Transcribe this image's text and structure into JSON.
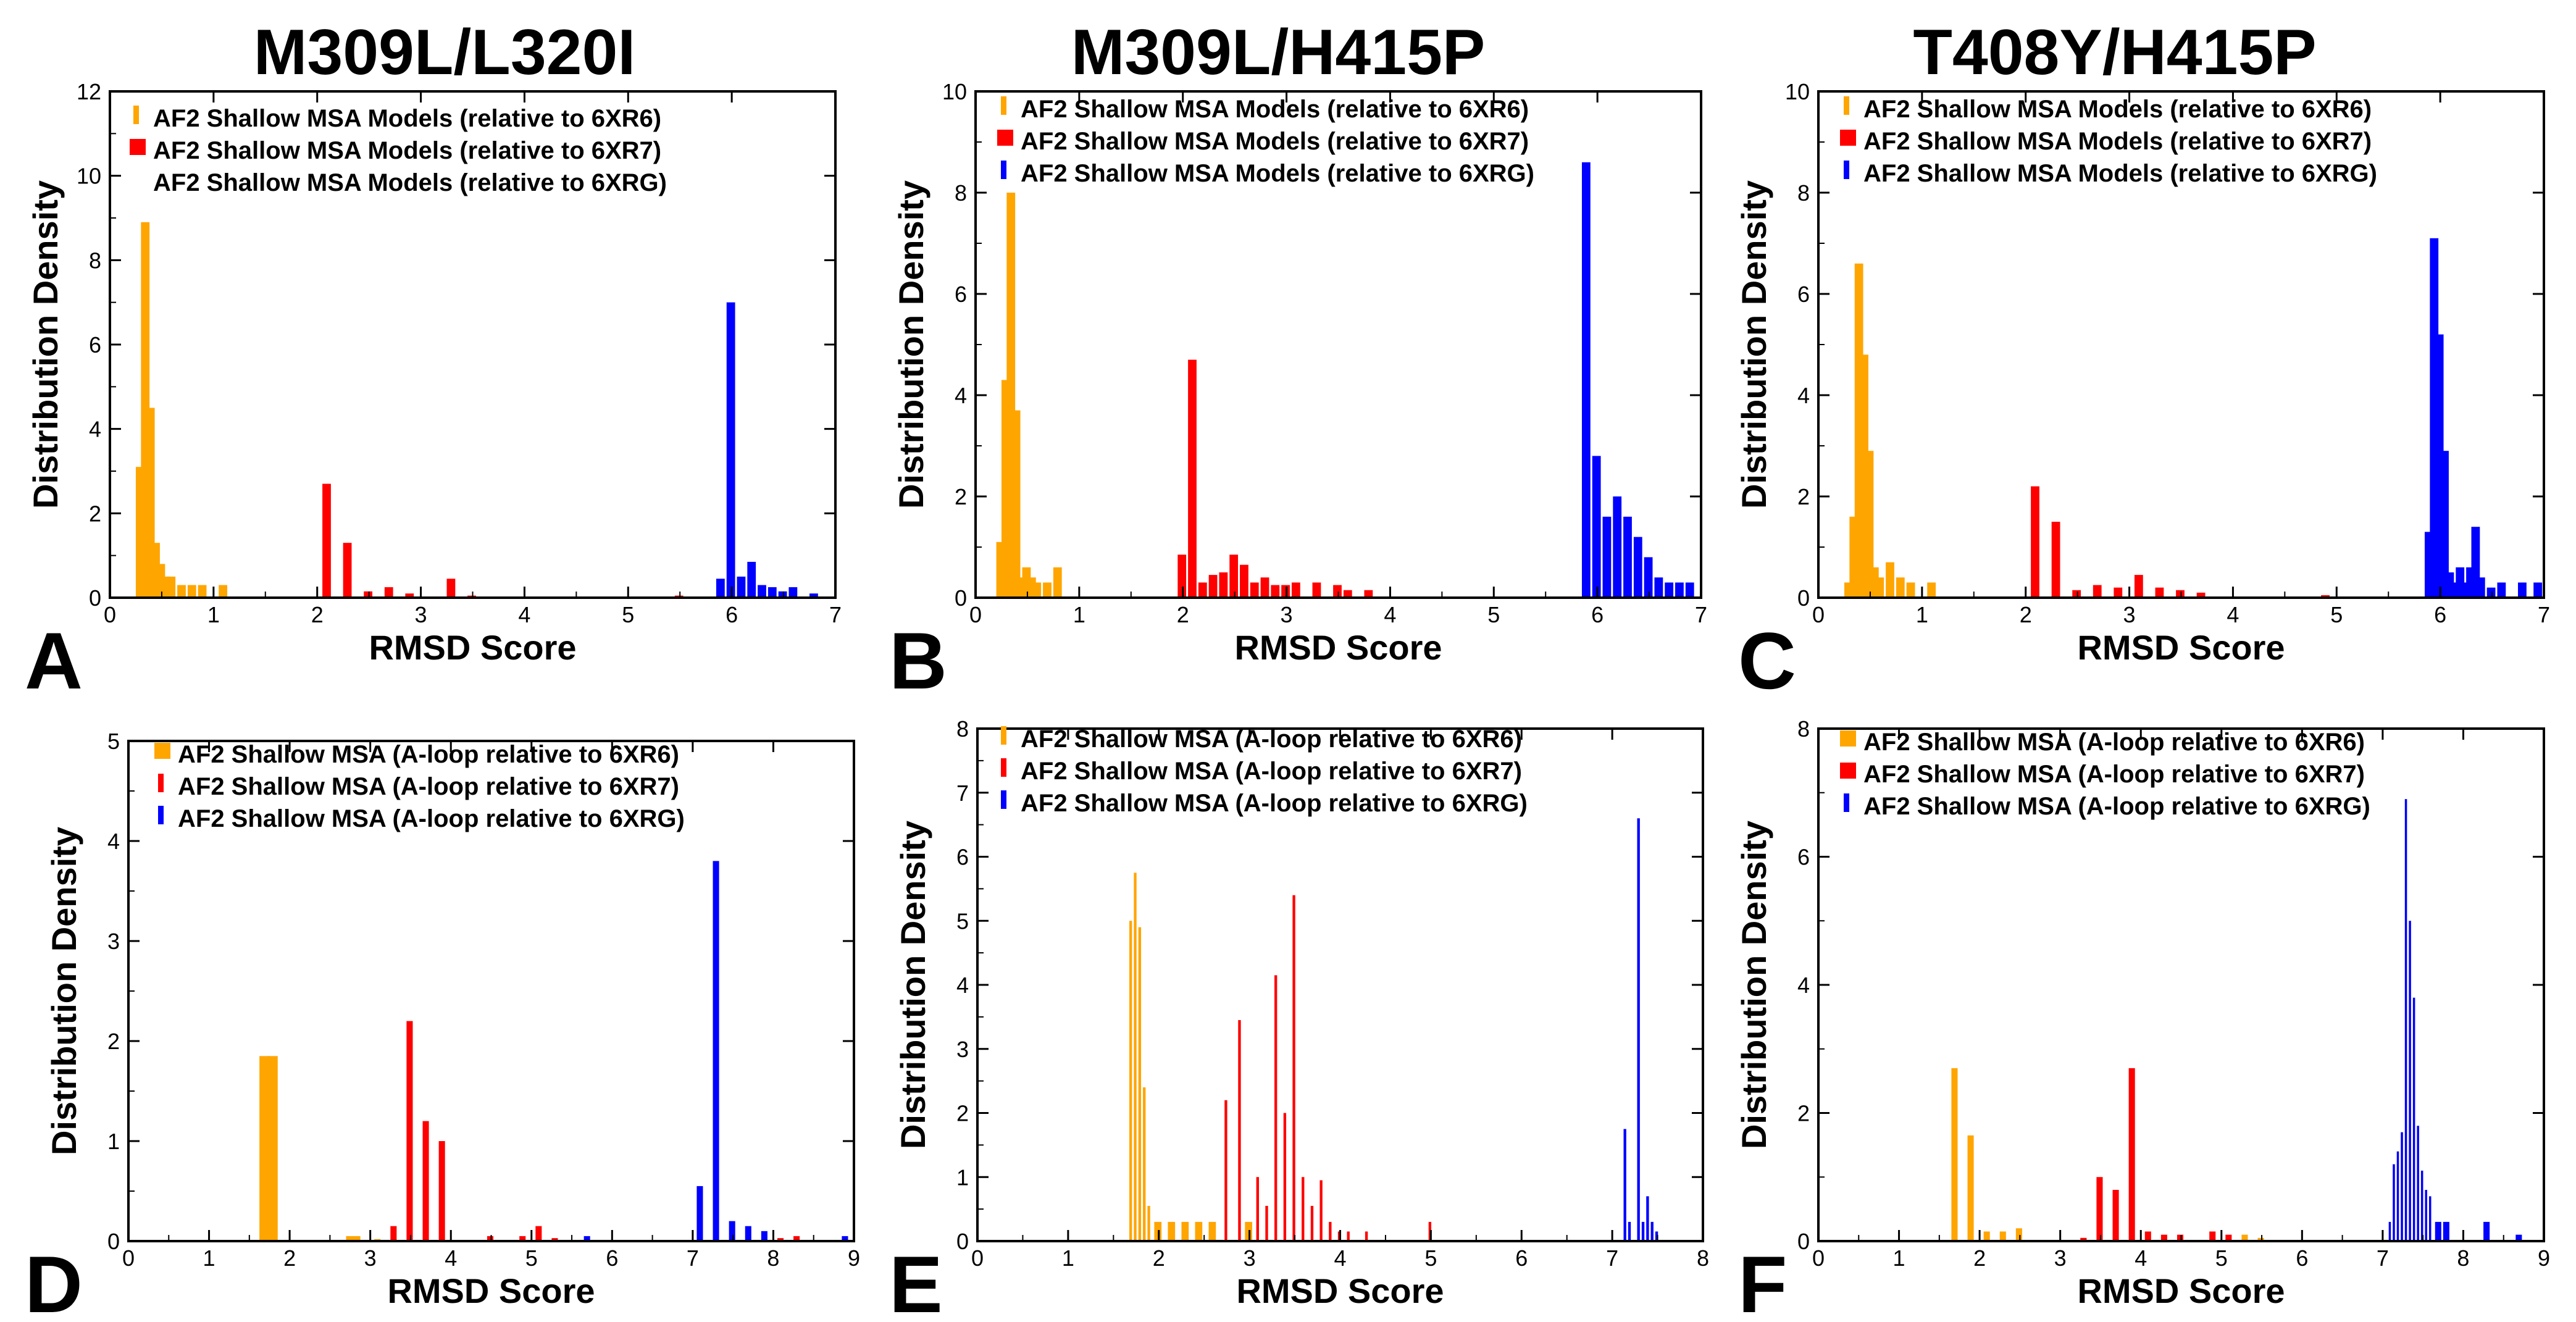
{
  "colors": {
    "orange": "#FFA500",
    "red": "#FF0000",
    "blue": "#0000FF"
  },
  "chart_data": [
    {
      "type": "bar",
      "panel_letter": "A",
      "title": "M309L/L320I",
      "xlabel": "RMSD Score",
      "ylabel": "Distribution Density",
      "xlim": [
        0,
        7
      ],
      "ylim": [
        0,
        12
      ],
      "xticks": [
        "0",
        "1",
        "2",
        "3",
        "4",
        "5",
        "6",
        "7"
      ],
      "yticks": [
        "0",
        "2",
        "4",
        "6",
        "8",
        "10",
        "12"
      ],
      "bin_width": 0.1,
      "legend_location": "top-left",
      "series": [
        {
          "name": "AF2 Shallow MSA Models (relative to 6XR6)",
          "color": "orange",
          "legend_swatch": "thin",
          "x": [
            0.3,
            0.35,
            0.4,
            0.45,
            0.5,
            0.55,
            0.6,
            0.7,
            0.8,
            0.9,
            1.1
          ],
          "y": [
            3.1,
            8.9,
            4.5,
            1.3,
            0.8,
            0.5,
            0.5,
            0.3,
            0.3,
            0.3,
            0.3
          ]
        },
        {
          "name": "AF2 Shallow MSA Models (relative to 6XR7)",
          "color": "red",
          "legend_swatch": "wide",
          "x": [
            2.1,
            2.3,
            2.5,
            2.7,
            2.9,
            3.3,
            3.5,
            5.5
          ],
          "y": [
            2.7,
            1.3,
            0.15,
            0.25,
            0.1,
            0.45,
            0.05,
            0.05
          ]
        },
        {
          "name": "AF2 Shallow MSA Models (relative to 6XRG)",
          "color": "blue",
          "legend_swatch": "none",
          "x": [
            5.9,
            6.0,
            6.1,
            6.2,
            6.3,
            6.4,
            6.5,
            6.6,
            6.8
          ],
          "y": [
            0.45,
            7.0,
            0.5,
            0.85,
            0.3,
            0.25,
            0.15,
            0.25,
            0.1
          ]
        }
      ]
    },
    {
      "type": "bar",
      "panel_letter": "B",
      "title": "M309L/H415P",
      "xlabel": "RMSD Score",
      "ylabel": "Distribution Density",
      "xlim": [
        0,
        7
      ],
      "ylim": [
        0,
        10
      ],
      "xticks": [
        "0",
        "1",
        "2",
        "3",
        "4",
        "5",
        "6",
        "7"
      ],
      "yticks": [
        "0",
        "2",
        "4",
        "6",
        "8",
        "10"
      ],
      "bin_width": 0.1,
      "legend_location": "top-left",
      "series": [
        {
          "name": "AF2 Shallow MSA Models (relative to 6XR6)",
          "color": "orange",
          "legend_swatch": "thin",
          "x": [
            0.25,
            0.3,
            0.35,
            0.4,
            0.45,
            0.5,
            0.55,
            0.6,
            0.7,
            0.8
          ],
          "y": [
            1.1,
            4.3,
            8.0,
            3.7,
            0.4,
            0.6,
            0.4,
            0.3,
            0.3,
            0.6
          ]
        },
        {
          "name": "AF2 Shallow MSA Models (relative to 6XR7)",
          "color": "red",
          "legend_swatch": "wide",
          "x": [
            2.0,
            2.1,
            2.2,
            2.3,
            2.4,
            2.5,
            2.6,
            2.7,
            2.8,
            2.9,
            3.0,
            3.1,
            3.3,
            3.5,
            3.6,
            3.8
          ],
          "y": [
            0.85,
            4.7,
            0.3,
            0.45,
            0.5,
            0.85,
            0.65,
            0.3,
            0.4,
            0.25,
            0.25,
            0.3,
            0.3,
            0.25,
            0.15,
            0.15
          ]
        },
        {
          "name": "AF2 Shallow MSA Models (relative to 6XRG)",
          "color": "blue",
          "legend_swatch": "thin",
          "x": [
            5.9,
            6.0,
            6.1,
            6.2,
            6.3,
            6.4,
            6.5,
            6.6,
            6.7,
            6.8,
            6.9
          ],
          "y": [
            8.6,
            2.8,
            1.6,
            2.0,
            1.6,
            1.2,
            0.8,
            0.4,
            0.3,
            0.3,
            0.3
          ]
        }
      ]
    },
    {
      "type": "bar",
      "panel_letter": "C",
      "title": "T408Y/H415P",
      "xlabel": "RMSD Score",
      "ylabel": "Distribution Density",
      "xlim": [
        0,
        7
      ],
      "ylim": [
        0,
        10
      ],
      "xticks": [
        "0",
        "1",
        "2",
        "3",
        "4",
        "5",
        "6",
        "7"
      ],
      "yticks": [
        "0",
        "2",
        "4",
        "6",
        "8",
        "10"
      ],
      "bin_width": 0.1,
      "legend_location": "top-left",
      "series": [
        {
          "name": "AF2 Shallow MSA Models (relative to 6XR6)",
          "color": "orange",
          "legend_swatch": "thin",
          "x": [
            0.3,
            0.35,
            0.4,
            0.45,
            0.5,
            0.55,
            0.6,
            0.7,
            0.8,
            0.9,
            1.1
          ],
          "y": [
            0.3,
            1.6,
            6.6,
            4.8,
            2.9,
            0.6,
            0.4,
            0.7,
            0.4,
            0.3,
            0.3
          ]
        },
        {
          "name": "AF2 Shallow MSA Models (relative to 6XR7)",
          "color": "red",
          "legend_swatch": "wide",
          "x": [
            2.1,
            2.3,
            2.5,
            2.7,
            2.9,
            3.1,
            3.3,
            3.5,
            3.7,
            4.9
          ],
          "y": [
            2.2,
            1.5,
            0.15,
            0.25,
            0.2,
            0.45,
            0.2,
            0.15,
            0.1,
            0.05
          ]
        },
        {
          "name": "AF2 Shallow MSA Models (relative to 6XRG)",
          "color": "blue",
          "legend_swatch": "thin",
          "x": [
            5.9,
            5.95,
            6.0,
            6.05,
            6.1,
            6.15,
            6.2,
            6.25,
            6.3,
            6.35,
            6.4,
            6.5,
            6.6,
            6.8,
            6.95
          ],
          "y": [
            1.3,
            7.1,
            5.2,
            2.9,
            0.5,
            0.3,
            0.6,
            0.3,
            0.6,
            1.4,
            0.4,
            0.2,
            0.3,
            0.3,
            0.3
          ]
        }
      ]
    },
    {
      "type": "bar",
      "panel_letter": "D",
      "title": "",
      "xlabel": "RMSD Score",
      "ylabel": "Distribution Density",
      "xlim": [
        0,
        9
      ],
      "ylim": [
        0,
        5
      ],
      "xticks": [
        "0",
        "1",
        "2",
        "3",
        "4",
        "5",
        "6",
        "7",
        "8",
        "9"
      ],
      "yticks": [
        "0",
        "1",
        "2",
        "3",
        "4",
        "5"
      ],
      "bin_width": 0.1,
      "legend_location": "top-left",
      "series": [
        {
          "name": "AF2 Shallow MSA (A-loop relative to 6XR6)",
          "color": "orange",
          "legend_swatch": "wide",
          "x": [
            1.7,
            1.8,
            2.8,
            3.1
          ],
          "y": [
            1.85,
            1.85,
            0.05,
            0.02
          ],
          "widths": [
            0.15,
            0.15,
            0.2,
            0.1
          ]
        },
        {
          "name": "AF2 Shallow MSA (A-loop relative to 6XR7)",
          "color": "red",
          "legend_swatch": "thin",
          "x": [
            3.3,
            3.5,
            3.7,
            3.9,
            4.5,
            4.9,
            5.1,
            5.3,
            8.1,
            8.3
          ],
          "y": [
            0.15,
            2.2,
            1.2,
            1.0,
            0.05,
            0.05,
            0.15,
            0.03,
            0.03,
            0.05
          ]
        },
        {
          "name": "AF2 Shallow MSA (A-loop relative to 6XRG)",
          "color": "blue",
          "legend_swatch": "thin",
          "x": [
            5.7,
            7.1,
            7.3,
            7.5,
            7.7,
            7.9,
            8.9
          ],
          "y": [
            0.05,
            0.55,
            3.8,
            0.2,
            0.15,
            0.1,
            0.05
          ]
        }
      ]
    },
    {
      "type": "bar",
      "panel_letter": "E",
      "title": "",
      "xlabel": "RMSD Score",
      "ylabel": "Distribution Density",
      "xlim": [
        0,
        8
      ],
      "ylim": [
        0,
        8
      ],
      "xticks": [
        "0",
        "1",
        "2",
        "3",
        "4",
        "5",
        "6",
        "7",
        "8"
      ],
      "yticks": [
        "0",
        "1",
        "2",
        "3",
        "4",
        "5",
        "6",
        "7",
        "8"
      ],
      "bin_width": 0.05,
      "legend_location": "top-left",
      "series": [
        {
          "name": "AF2 Shallow MSA (A-loop relative to 6XR6)",
          "color": "orange",
          "legend_swatch": "thin",
          "x": [
            1.7,
            1.75,
            1.8,
            1.85,
            1.9,
            2.0,
            2.15,
            2.3,
            2.45,
            2.6,
            3.0
          ],
          "y": [
            5.0,
            5.75,
            4.9,
            2.4,
            0.55,
            0.3,
            0.3,
            0.3,
            0.3,
            0.3,
            0.3
          ],
          "widths": [
            0.05,
            0.05,
            0.05,
            0.05,
            0.05,
            0.1,
            0.1,
            0.1,
            0.1,
            0.1,
            0.1
          ]
        },
        {
          "name": "AF2 Shallow MSA (A-loop relative to 6XR7)",
          "color": "red",
          "legend_swatch": "thin",
          "x": [
            2.75,
            2.9,
            3.1,
            3.2,
            3.3,
            3.4,
            3.5,
            3.6,
            3.7,
            3.8,
            3.9,
            4.0,
            4.1,
            4.3,
            5.0
          ],
          "y": [
            2.2,
            3.45,
            1.0,
            0.55,
            4.15,
            2.0,
            5.4,
            1.0,
            0.55,
            0.95,
            0.3,
            0.15,
            0.15,
            0.15,
            0.3
          ]
        },
        {
          "name": "AF2 Shallow MSA (A-loop relative to 6XRG)",
          "color": "blue",
          "legend_swatch": "thin",
          "x": [
            7.15,
            7.2,
            7.3,
            7.35,
            7.4,
            7.45,
            7.5
          ],
          "y": [
            1.75,
            0.3,
            6.6,
            0.3,
            0.7,
            0.3,
            0.15
          ]
        }
      ]
    },
    {
      "type": "bar",
      "panel_letter": "F",
      "title": "",
      "xlabel": "RMSD Score",
      "ylabel": "Distribution Density",
      "xlim": [
        0,
        9
      ],
      "ylim": [
        0,
        8
      ],
      "xticks": [
        "0",
        "1",
        "2",
        "3",
        "4",
        "5",
        "6",
        "7",
        "8",
        "9"
      ],
      "yticks": [
        "0",
        "2",
        "4",
        "6",
        "8"
      ],
      "bin_width": 0.1,
      "legend_location": "top-left",
      "series": [
        {
          "name": "AF2 Shallow MSA (A-loop relative to 6XR6)",
          "color": "orange",
          "legend_swatch": "wide",
          "x": [
            1.7,
            1.9,
            2.1,
            2.3,
            2.5,
            3.3,
            5.3,
            5.5
          ],
          "y": [
            2.7,
            1.65,
            0.15,
            0.15,
            0.2,
            0.05,
            0.1,
            0.05
          ]
        },
        {
          "name": "AF2 Shallow MSA (A-loop relative to 6XR7)",
          "color": "red",
          "legend_swatch": "wide",
          "x": [
            3.3,
            3.5,
            3.7,
            3.9,
            4.1,
            4.3,
            4.5,
            4.9,
            5.1
          ],
          "y": [
            0.05,
            1.0,
            0.8,
            2.7,
            0.15,
            0.1,
            0.1,
            0.15,
            0.1
          ]
        },
        {
          "name": "AF2 Shallow MSA (A-loop relative to 6XRG)",
          "color": "blue",
          "legend_swatch": "thin",
          "x": [
            7.1,
            7.15,
            7.2,
            7.25,
            7.3,
            7.35,
            7.4,
            7.45,
            7.5,
            7.55,
            7.6,
            7.7,
            7.8,
            8.3,
            8.7
          ],
          "y": [
            0.3,
            1.2,
            1.4,
            1.7,
            6.9,
            5.0,
            3.8,
            1.8,
            1.1,
            0.8,
            0.7,
            0.3,
            0.3,
            0.3,
            0.1
          ],
          "widths": [
            0.05,
            0.05,
            0.05,
            0.05,
            0.05,
            0.05,
            0.05,
            0.05,
            0.05,
            0.05,
            0.05,
            0.1,
            0.1,
            0.1,
            0.1
          ]
        }
      ]
    }
  ]
}
